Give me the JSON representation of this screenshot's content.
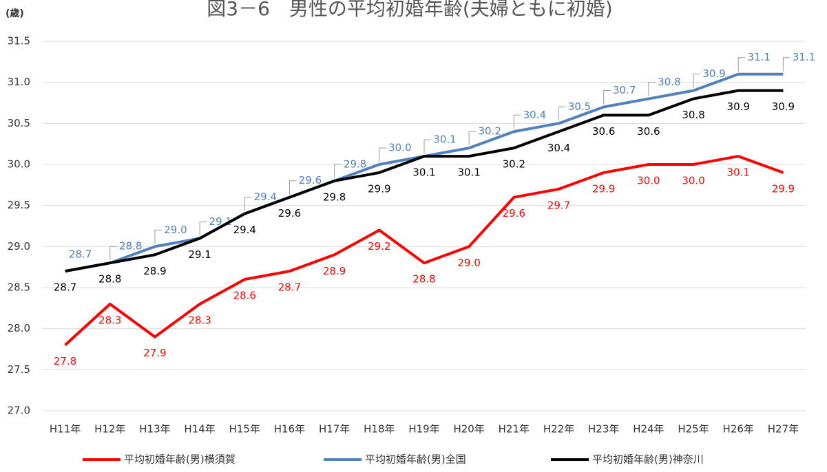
{
  "chart_data": {
    "type": "line",
    "title": "図3－6　男性の平均初婚年齢(夫婦ともに初婚)",
    "y_label": "(歳)",
    "categories": [
      "H11年",
      "H12年",
      "H13年",
      "H14年",
      "H15年",
      "H16年",
      "H17年",
      "H18年",
      "H19年",
      "H20年",
      "H21年",
      "H22年",
      "H23年",
      "H24年",
      "H25年",
      "H26年",
      "H27年"
    ],
    "ylim": [
      27,
      31.5
    ],
    "yticks": [
      {
        "value": 27,
        "label": "27.0"
      },
      27.5,
      {
        "value": 28,
        "label": "28.0"
      },
      28.5,
      {
        "value": 29,
        "label": "29.0"
      },
      29.5,
      {
        "value": 30,
        "label": "30.0"
      },
      30.5,
      {
        "value": 31,
        "label": "31.0"
      },
      31.5
    ],
    "grid": true,
    "legend": "bottom",
    "series": [
      {
        "name": "平均初婚年齢(男)横須賀",
        "color": "#ff0000",
        "values": [
          27.8,
          28.3,
          27.9,
          28.3,
          28.6,
          28.7,
          28.9,
          29.2,
          28.8,
          29.0,
          29.6,
          29.7,
          29.9,
          30.0,
          30.0,
          30.1,
          29.9
        ],
        "value_labels": [
          "27.8",
          "28.3",
          "27.9",
          "28.3",
          "28.6",
          "28.7",
          "28.9",
          "29.2",
          "28.8",
          "29.0",
          "29.6",
          "29.7",
          "29.9",
          "30.0",
          "30.0",
          "30.1",
          "29.9"
        ]
      },
      {
        "name": "平均初婚年齢(男)全国",
        "color": "#4f81bd",
        "values": [
          28.7,
          28.8,
          29.0,
          29.1,
          29.4,
          29.6,
          29.8,
          30.0,
          30.1,
          30.2,
          30.4,
          30.5,
          30.7,
          30.8,
          30.9,
          31.1,
          31.1
        ],
        "value_labels": [
          "28.7",
          "28.8",
          "29.0",
          "29.1",
          "29.4",
          "29.6",
          "29.8",
          "30.0",
          "30.1",
          "30.2",
          "30.4",
          "30.5",
          "30.7",
          "30.8",
          "30.9",
          "31.1",
          "31.1"
        ]
      },
      {
        "name": "平均初婚年齢(男)神奈川",
        "color": "#000000",
        "values": [
          28.7,
          28.8,
          28.9,
          29.1,
          29.4,
          29.6,
          29.8,
          29.9,
          30.1,
          30.1,
          30.2,
          30.4,
          30.6,
          30.6,
          30.8,
          30.9,
          30.9
        ],
        "value_labels": [
          "28.7",
          "28.8",
          "28.9",
          "29.1",
          "29.4",
          "29.6",
          "29.8",
          "29.9",
          "30.1",
          "30.1",
          "30.2",
          "30.4",
          "30.6",
          "30.6",
          "30.8",
          "30.9",
          "30.9"
        ]
      }
    ]
  }
}
